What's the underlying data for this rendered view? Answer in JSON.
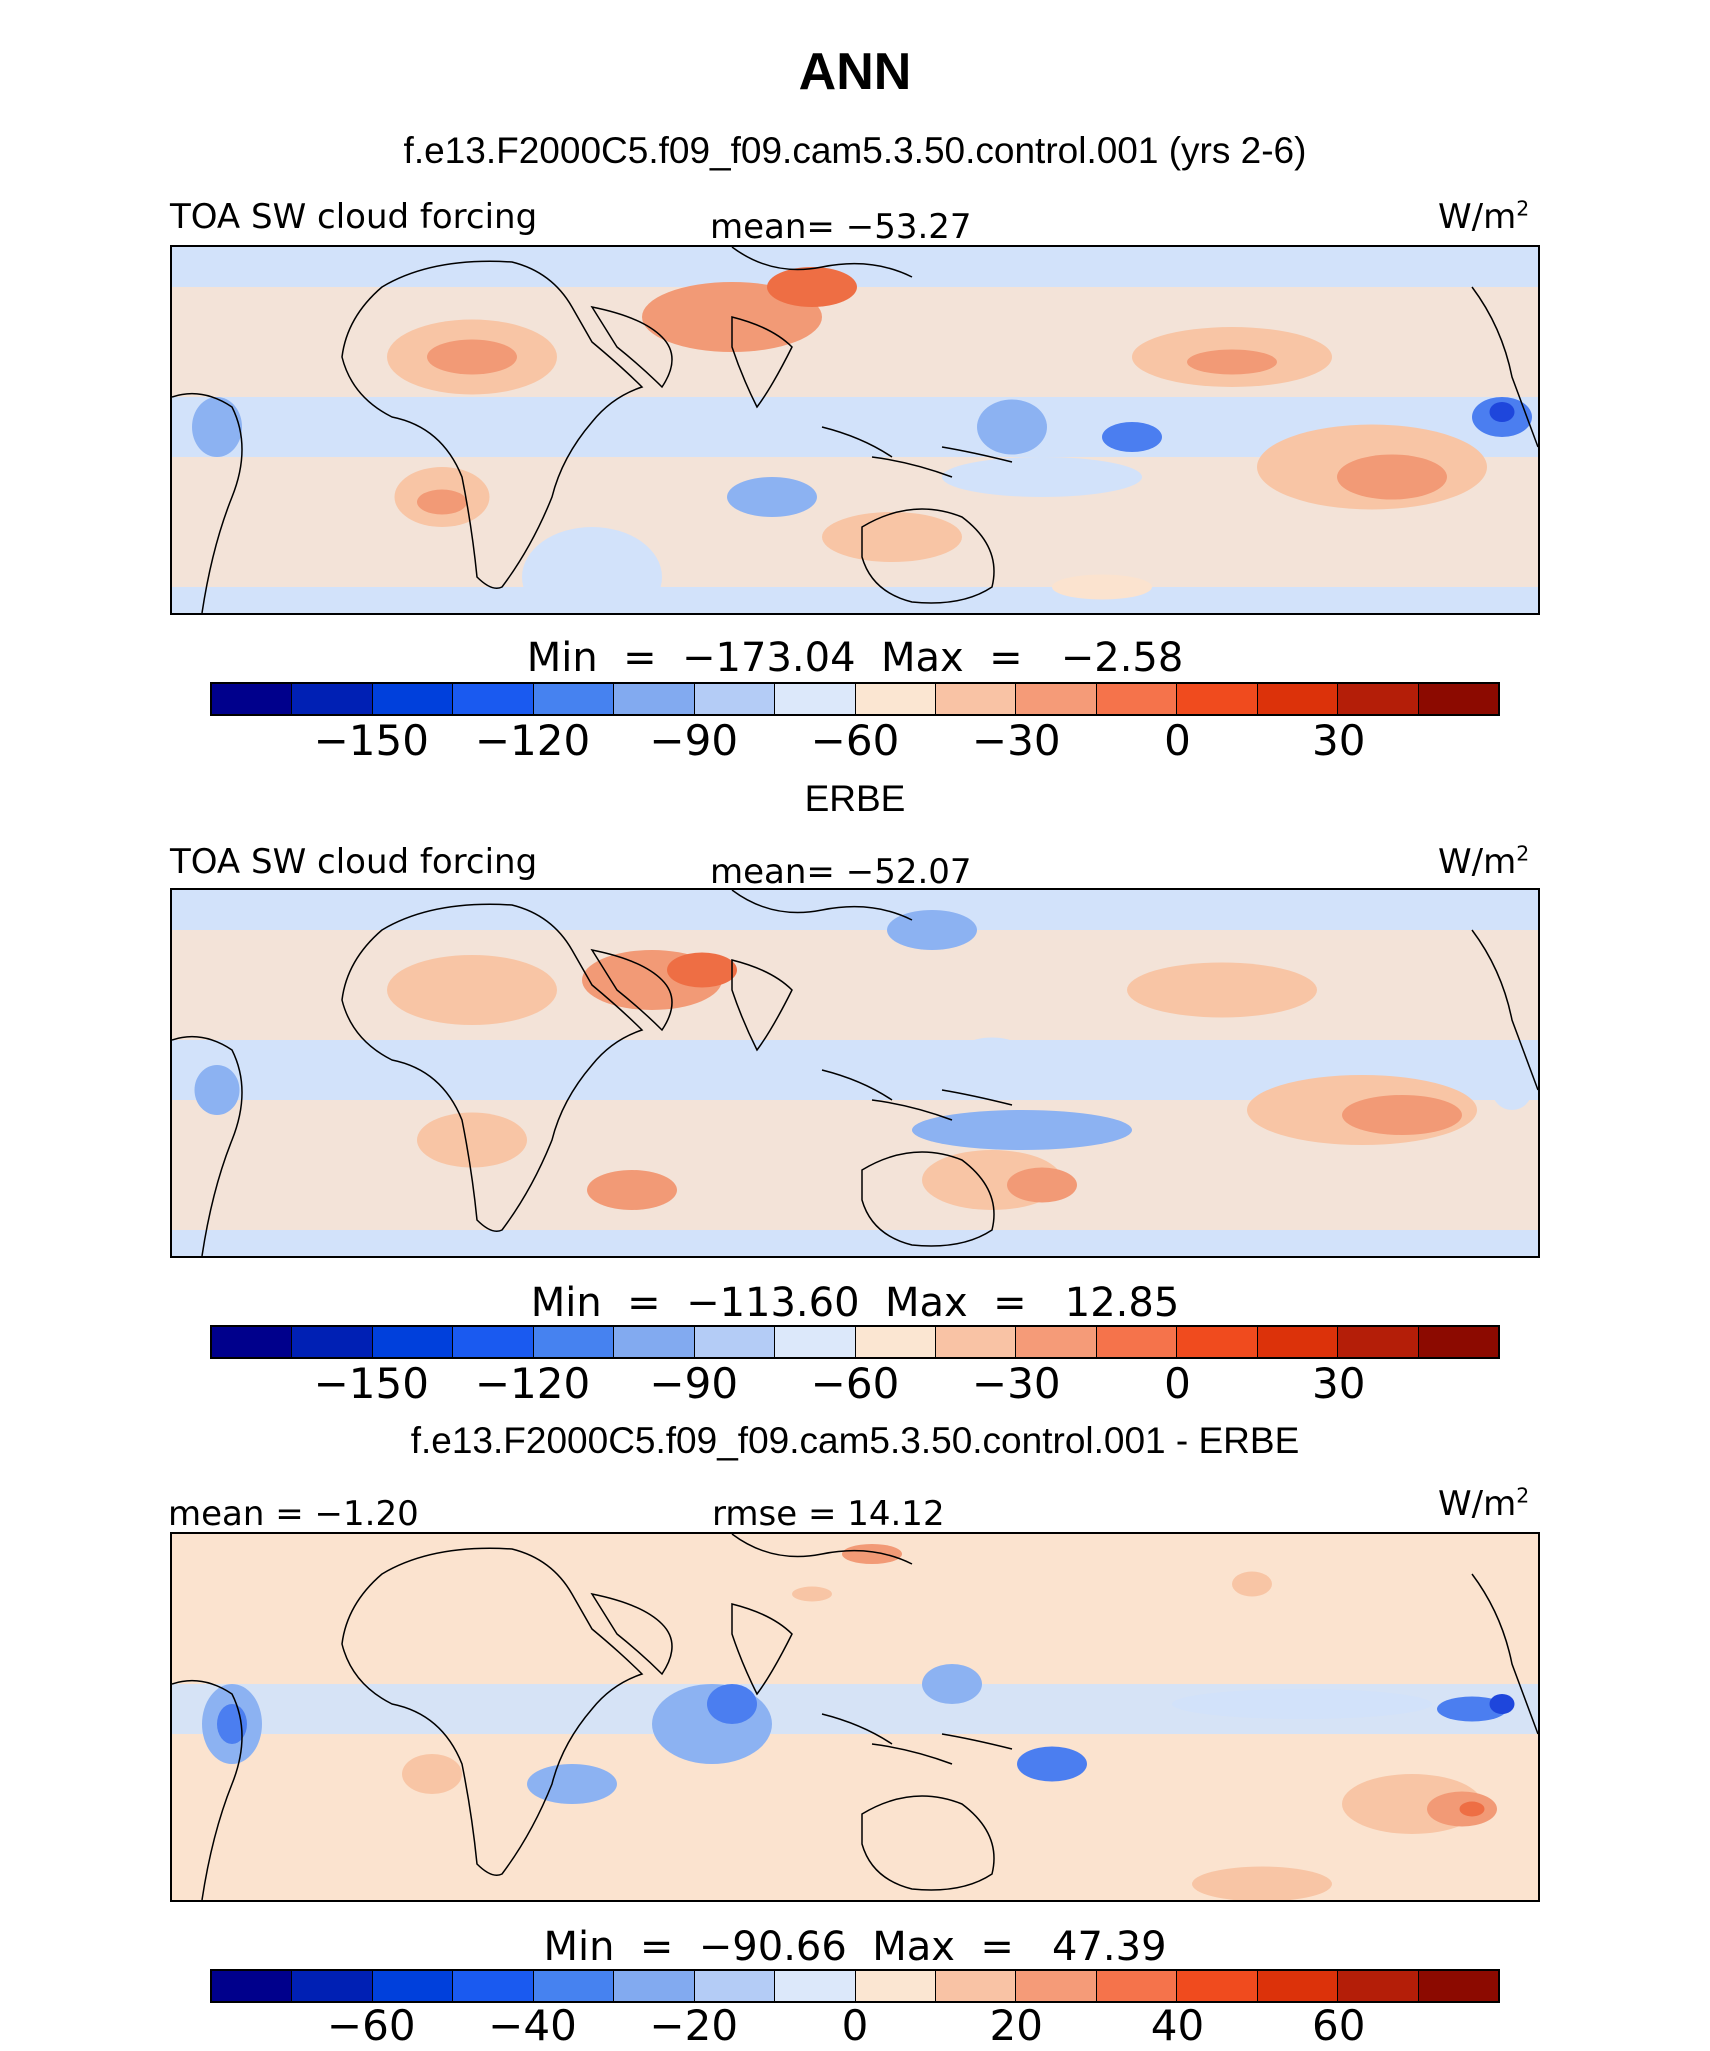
{
  "header": {
    "title": "ANN",
    "case_title": "f.e13.F2000C5.f09_f09.cam5.3.50.control.001 (yrs 2-6)"
  },
  "panels": [
    {
      "left_label": "TOA SW cloud forcing",
      "center_label": "mean= −53.27",
      "units": "W/m",
      "units_sup": "2",
      "minmax": "Min  =  −173.04  Max  =   −2.58",
      "ticks": [
        "−150",
        "−120",
        "−90",
        "−60",
        "−30",
        "0",
        "30"
      ],
      "title_below": "ERBE",
      "field": "model"
    },
    {
      "left_label": "TOA SW cloud forcing",
      "center_label": "mean= −52.07",
      "units": "W/m",
      "units_sup": "2",
      "minmax": "Min  =  −113.60  Max  =   12.85",
      "ticks": [
        "−150",
        "−120",
        "−90",
        "−60",
        "−30",
        "0",
        "30"
      ],
      "title_below": "f.e13.F2000C5.f09_f09.cam5.3.50.control.001 - ERBE",
      "field": "obs"
    },
    {
      "left_label": "mean =  −1.20",
      "center_label": "rmse =  14.12",
      "units": "W/m",
      "units_sup": "2",
      "minmax": "Min  =  −90.66  Max  =   47.39",
      "ticks": [
        "−60",
        "−40",
        "−20",
        "0",
        "20",
        "40",
        "60"
      ],
      "title_below": "",
      "field": "diff"
    }
  ],
  "colorbar_colors": [
    "#00008c",
    "#0020b4",
    "#0040dc",
    "#1a5af0",
    "#4682f0",
    "#82aaf0",
    "#b4ccf6",
    "#dce8fa",
    "#fbe6d2",
    "#f9c3a5",
    "#f59b78",
    "#f5734b",
    "#f04b1e",
    "#dc320a",
    "#b41e08",
    "#8c0a00"
  ],
  "map_colors": {
    "deep_blue": "#1e46dc",
    "mid_blue": "#4b7ef0",
    "light_blue": "#8cb2f2",
    "pale_blue": "#d2e2fa",
    "pale_orange": "#fbe3cf",
    "light_orange": "#f8c5a5",
    "mid_orange": "#f29a76",
    "dark_orange": "#ee6e44",
    "coast": "#000000"
  }
}
